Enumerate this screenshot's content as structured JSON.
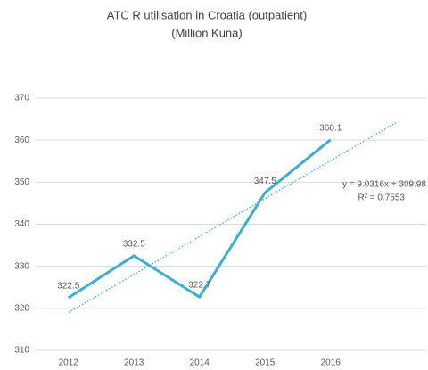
{
  "chart_data": {
    "type": "line",
    "title": "ATC R utilisation in Croatia (outpatient)",
    "subtitle": "(Million Kuna)",
    "categories": [
      "2012",
      "2013",
      "2014",
      "2015",
      "2016"
    ],
    "series": [
      {
        "name": "ATC R",
        "color": "#3caed2",
        "values": [
          322.5,
          332.5,
          322.7,
          347.5,
          360.1
        ]
      }
    ],
    "ylim": [
      310,
      370
    ],
    "yticks": [
      310,
      320,
      330,
      340,
      350,
      360,
      370
    ],
    "grid": true,
    "trendline": {
      "equation": "y = 9.0316x + 309.98",
      "r_squared": "R² = 0.7553",
      "slope": 9.0316,
      "intercept": 309.98,
      "forward": 1
    }
  }
}
